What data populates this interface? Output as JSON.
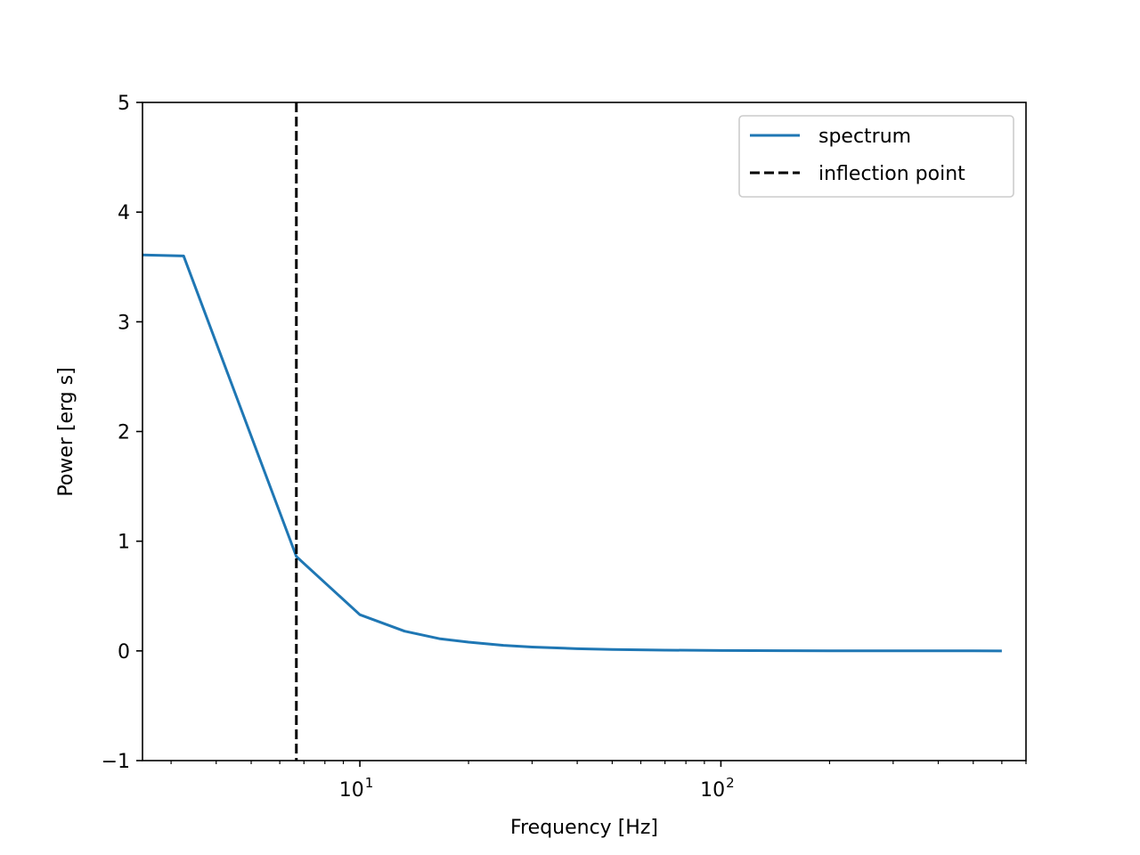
{
  "chart_data": {
    "type": "line",
    "title": "",
    "xlabel": "Frequency [Hz]",
    "ylabel": "Power [erg s]",
    "xscale": "log",
    "xlim": [
      2.5,
      700
    ],
    "ylim": [
      -1,
      5
    ],
    "x_ticks": [
      {
        "value": 10,
        "base": "10",
        "exp": "1"
      },
      {
        "value": 100,
        "base": "10",
        "exp": "2"
      }
    ],
    "y_ticks": [
      {
        "value": -1,
        "label": "−1"
      },
      {
        "value": 0,
        "label": "0"
      },
      {
        "value": 1,
        "label": "1"
      },
      {
        "value": 2,
        "label": "2"
      },
      {
        "value": 3,
        "label": "3"
      },
      {
        "value": 4,
        "label": "4"
      },
      {
        "value": 5,
        "label": "5"
      }
    ],
    "grid": false,
    "legend_position": "upper right",
    "series": [
      {
        "name": "spectrum",
        "color": "#1f77b4",
        "style": "solid",
        "x": [
          2.5,
          3.25,
          6.67,
          10.0,
          13.3,
          16.7,
          20.0,
          25,
          30,
          40,
          50,
          70,
          100,
          150,
          200,
          300,
          400,
          500,
          600
        ],
        "y": [
          3.61,
          3.6,
          0.86,
          0.33,
          0.18,
          0.11,
          0.08,
          0.05,
          0.035,
          0.02,
          0.013,
          0.007,
          0.004,
          0.002,
          0.001,
          0.0005,
          0.0003,
          0.0002,
          0.0001
        ]
      }
    ],
    "vlines": [
      {
        "name": "inflection point",
        "x": 6.67,
        "color": "#000000",
        "style": "dashed"
      }
    ]
  }
}
